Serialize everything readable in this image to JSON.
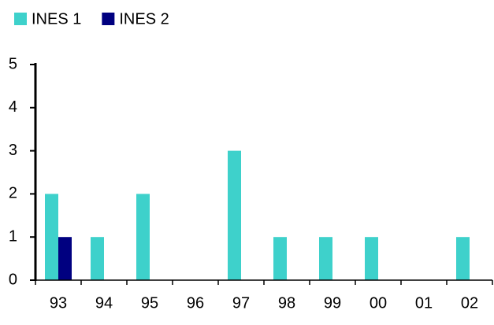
{
  "chart_data": {
    "type": "bar",
    "categories": [
      "93",
      "94",
      "95",
      "96",
      "97",
      "98",
      "99",
      "00",
      "01",
      "02"
    ],
    "series": [
      {
        "name": "INES 1",
        "color": "#3ed1cb",
        "values": [
          2,
          1,
          2,
          0,
          3,
          1,
          1,
          1,
          0,
          1
        ]
      },
      {
        "name": "INES 2",
        "color": "#000080",
        "values": [
          1,
          0,
          0,
          0,
          0,
          0,
          0,
          0,
          0,
          0
        ]
      }
    ],
    "ylim": [
      0,
      5
    ],
    "yticks": [
      0,
      1,
      2,
      3,
      4,
      5
    ],
    "grid": false,
    "legend": "top-left"
  }
}
